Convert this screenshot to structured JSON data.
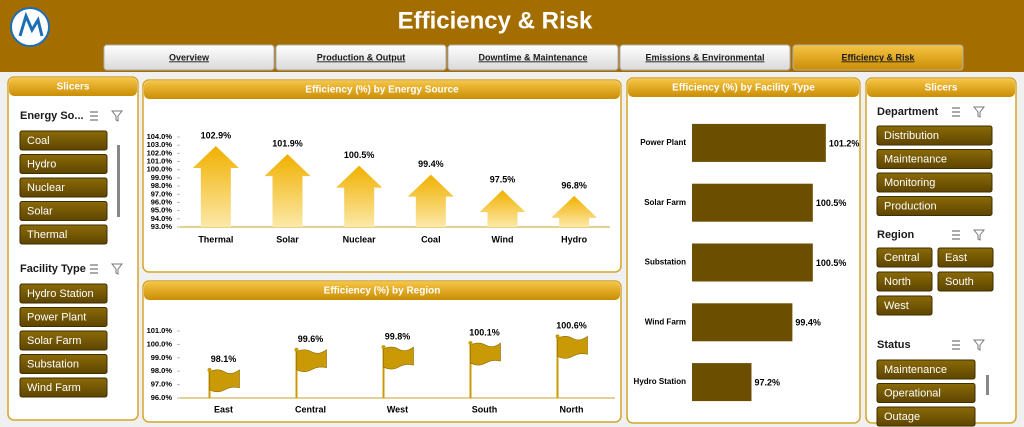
{
  "header": {
    "title": "Efficiency & Risk"
  },
  "tabs": {
    "items": [
      "Overview",
      "Production & Output",
      "Downtime & Maintenance",
      "Emissions & Environmental",
      "Efficiency & Risk"
    ],
    "active": 4
  },
  "left_slicers": {
    "title": "Slicers",
    "groups": [
      {
        "title": "Energy So...",
        "items": [
          "Coal",
          "Hydro",
          "Nuclear",
          "Solar",
          "Thermal"
        ]
      },
      {
        "title": "Facility Type",
        "items": [
          "Hydro Station",
          "Power Plant",
          "Solar Farm",
          "Substation",
          "Wind Farm"
        ]
      }
    ]
  },
  "right_slicers": {
    "title": "Slicers",
    "groups": [
      {
        "title": "Department",
        "items": [
          "Distribution",
          "Maintenance",
          "Monitoring",
          "Production"
        ]
      },
      {
        "title": "Region",
        "items": [
          "Central",
          "East",
          "North",
          "South",
          "West"
        ]
      },
      {
        "title": "Status",
        "items": [
          "Maintenance",
          "Operational",
          "Outage"
        ]
      }
    ]
  },
  "chart_data": [
    {
      "type": "bar",
      "shape": "arrow",
      "title": "Efficiency (%) by Energy Source",
      "color": "#f2b705",
      "categories": [
        "Thermal",
        "Solar",
        "Nuclear",
        "Coal",
        "Wind",
        "Hydro"
      ],
      "values": [
        102.9,
        101.9,
        100.5,
        99.4,
        97.5,
        96.8
      ],
      "value_labels": [
        "102.9%",
        "101.9%",
        "100.5%",
        "99.4%",
        "97.5%",
        "96.8%"
      ],
      "ylim": [
        93,
        104
      ],
      "yticks": [
        {
          "value": 93,
          "label": "93.0%"
        },
        {
          "value": 94,
          "label": "94.0%"
        },
        {
          "value": 95,
          "label": "95.0%"
        },
        {
          "value": 96,
          "label": "96.0%"
        },
        {
          "value": 97,
          "label": "97.0%"
        },
        {
          "value": 98,
          "label": "98.0%"
        },
        {
          "value": 99,
          "label": "99.0%"
        },
        {
          "value": 100,
          "label": "100.0%"
        },
        {
          "value": 101,
          "label": "101.0%"
        },
        {
          "value": 102,
          "label": "102.0%"
        },
        {
          "value": 103,
          "label": "103.0%"
        },
        {
          "value": 104,
          "label": "104.0%"
        }
      ]
    },
    {
      "type": "bar",
      "shape": "flag",
      "title": "Efficiency (%) by Region",
      "color": "#c99a06",
      "categories": [
        "East",
        "Central",
        "West",
        "South",
        "North"
      ],
      "values": [
        98.1,
        99.6,
        99.8,
        100.1,
        100.6
      ],
      "value_labels": [
        "98.1%",
        "99.6%",
        "99.8%",
        "100.1%",
        "100.6%"
      ],
      "ylim": [
        96,
        101
      ],
      "yticks": [
        {
          "value": 96,
          "label": "96.0%"
        },
        {
          "value": 97,
          "label": "97.0%"
        },
        {
          "value": 98,
          "label": "98.0%"
        },
        {
          "value": 99,
          "label": "99.0%"
        },
        {
          "value": 100,
          "label": "100.0%"
        },
        {
          "value": 101,
          "label": "101.0%"
        }
      ]
    },
    {
      "type": "bar",
      "shape": "horizontal",
      "title": "Efficiency (%) by Facility Type",
      "color": "#6b4e00",
      "categories": [
        "Power Plant",
        "Solar Farm",
        "Substation",
        "Wind Farm",
        "Hydro Station"
      ],
      "values": [
        101.2,
        100.5,
        100.5,
        99.4,
        97.2
      ],
      "value_labels": [
        "101.2%",
        "100.5%",
        "100.5%",
        "99.4%",
        "97.2%"
      ],
      "xlim": [
        94,
        102.5
      ]
    }
  ]
}
